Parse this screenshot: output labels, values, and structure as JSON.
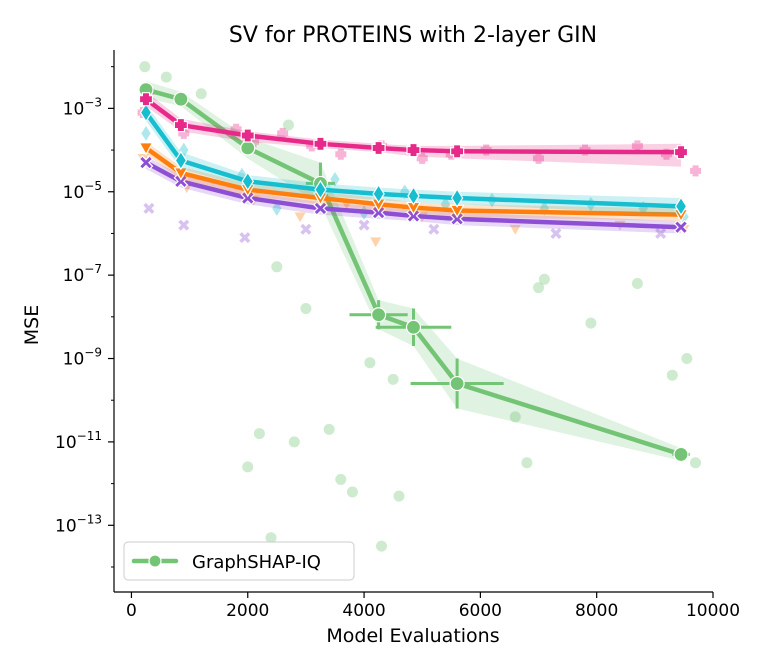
{
  "chart_data": {
    "type": "line",
    "title": "SV for PROTEINS with 2-layer GIN",
    "xlabel": "Model Evaluations",
    "ylabel": "MSE",
    "xlim": [
      -300,
      10000
    ],
    "ylim_log10": [
      -14.6,
      -1.6
    ],
    "x_ticks": [
      0,
      2000,
      4000,
      6000,
      8000,
      10000
    ],
    "x_tick_labels": [
      "0",
      "2000",
      "4000",
      "6000",
      "8000",
      "10000"
    ],
    "y_ticks_log10": [
      -3,
      -5,
      -7,
      -9,
      -11,
      -13
    ],
    "y_tick_labels": [
      {
        "base": "10",
        "exp": "−3"
      },
      {
        "base": "10",
        "exp": "−5"
      },
      {
        "base": "10",
        "exp": "−7"
      },
      {
        "base": "10",
        "exp": "−9"
      },
      {
        "base": "10",
        "exp": "−11"
      },
      {
        "base": "10",
        "exp": "−13"
      }
    ],
    "legend": {
      "label": "GraphSHAP-IQ",
      "location": "lower-left"
    },
    "series": [
      {
        "name": "pink-plus",
        "color": "#e7298a",
        "marker": "plus",
        "x": [
          250,
          850,
          2000,
          3250,
          4250,
          4850,
          5600,
          9450
        ],
        "log10_mse": [
          -2.78,
          -3.4,
          -3.65,
          -3.85,
          -3.95,
          -4.0,
          -4.03,
          -4.05
        ],
        "band_lower": [
          -2.95,
          -3.55,
          -3.8,
          -3.95,
          -4.05,
          -4.15,
          -4.2,
          -4.4
        ],
        "band_upper": [
          -2.6,
          -3.25,
          -3.55,
          -3.75,
          -3.85,
          -3.9,
          -3.9,
          -3.85
        ],
        "scatter_log10": [
          [
            200,
            -3.1
          ],
          [
            300,
            -2.6
          ],
          [
            900,
            -3.6
          ],
          [
            1800,
            -3.5
          ],
          [
            2100,
            -3.8
          ],
          [
            2600,
            -3.6
          ],
          [
            3100,
            -3.9
          ],
          [
            3600,
            -4.1
          ],
          [
            4300,
            -3.9
          ],
          [
            5000,
            -4.2
          ],
          [
            5500,
            -4.1
          ],
          [
            6100,
            -4.0
          ],
          [
            7000,
            -4.2
          ],
          [
            7800,
            -4.0
          ],
          [
            8700,
            -3.9
          ],
          [
            9200,
            -4.1
          ],
          [
            9700,
            -4.5
          ]
        ]
      },
      {
        "name": "cyan-diamond",
        "color": "#17becf",
        "marker": "diamond",
        "x": [
          250,
          850,
          2000,
          3250,
          4250,
          4850,
          5600,
          9450
        ],
        "log10_mse": [
          -3.1,
          -4.25,
          -4.75,
          -4.95,
          -5.05,
          -5.1,
          -5.15,
          -5.35
        ],
        "band_lower": [
          -3.3,
          -4.45,
          -4.9,
          -5.1,
          -5.2,
          -5.25,
          -5.3,
          -5.55
        ],
        "band_upper": [
          -2.9,
          -4.05,
          -4.6,
          -4.8,
          -4.9,
          -4.95,
          -5.0,
          -5.15
        ],
        "scatter_log10": [
          [
            250,
            -3.6
          ],
          [
            900,
            -4.0
          ],
          [
            1900,
            -4.6
          ],
          [
            2500,
            -5.4
          ],
          [
            3500,
            -4.7
          ],
          [
            4000,
            -5.5
          ],
          [
            4700,
            -5.0
          ],
          [
            5400,
            -5.3
          ],
          [
            6200,
            -5.2
          ],
          [
            7100,
            -5.4
          ],
          [
            7900,
            -5.3
          ],
          [
            8800,
            -5.4
          ],
          [
            9500,
            -5.6
          ]
        ]
      },
      {
        "name": "orange-triangle",
        "color": "#ff7f0e",
        "marker": "triangle-down",
        "x": [
          250,
          850,
          2000,
          3250,
          4250,
          4850,
          5600,
          9450
        ],
        "log10_mse": [
          -3.95,
          -4.55,
          -4.95,
          -5.15,
          -5.3,
          -5.38,
          -5.45,
          -5.55
        ],
        "band_lower": [
          -4.1,
          -4.7,
          -5.1,
          -5.3,
          -5.45,
          -5.5,
          -5.6,
          -5.7
        ],
        "band_upper": [
          -3.8,
          -4.4,
          -4.8,
          -5.0,
          -5.15,
          -5.25,
          -5.3,
          -5.4
        ],
        "scatter_log10": [
          [
            200,
            -4.2
          ],
          [
            950,
            -4.9
          ],
          [
            2100,
            -5.2
          ],
          [
            2900,
            -5.6
          ],
          [
            3700,
            -5.3
          ],
          [
            4200,
            -6.2
          ],
          [
            5000,
            -5.6
          ],
          [
            6600,
            -5.9
          ],
          [
            8400,
            -5.8
          ],
          [
            9500,
            -5.9
          ]
        ]
      },
      {
        "name": "purple-x",
        "color": "#8e4fd4",
        "marker": "x",
        "x": [
          250,
          850,
          2000,
          3250,
          4250,
          4850,
          5600,
          9450
        ],
        "log10_mse": [
          -4.3,
          -4.75,
          -5.15,
          -5.4,
          -5.5,
          -5.58,
          -5.65,
          -5.85
        ],
        "band_lower": [
          -4.45,
          -4.9,
          -5.3,
          -5.55,
          -5.65,
          -5.7,
          -5.8,
          -6.0
        ],
        "band_upper": [
          -4.15,
          -4.6,
          -5.0,
          -5.25,
          -5.35,
          -5.45,
          -5.5,
          -5.7
        ],
        "scatter_log10": [
          [
            300,
            -5.4
          ],
          [
            900,
            -5.8
          ],
          [
            1950,
            -6.1
          ],
          [
            3000,
            -5.9
          ],
          [
            4000,
            -5.8
          ],
          [
            5200,
            -5.9
          ],
          [
            7300,
            -6.0
          ],
          [
            9100,
            -6.0
          ]
        ]
      },
      {
        "name": "GraphSHAP-IQ",
        "color": "#74c476",
        "marker": "circle",
        "x": [
          250,
          850,
          2000,
          3250,
          4250,
          4850,
          5600,
          9450
        ],
        "log10_mse": [
          -2.55,
          -2.78,
          -3.95,
          -4.8,
          -7.95,
          -8.25,
          -9.6,
          -11.3
        ],
        "band_lower": [
          -2.75,
          -2.95,
          -4.2,
          -5.3,
          -8.3,
          -8.7,
          -10.2,
          -11.45
        ],
        "band_upper": [
          -2.35,
          -2.6,
          -3.7,
          -4.3,
          -7.6,
          -7.8,
          -9.0,
          -11.15
        ],
        "x_error": [
          0,
          0,
          0,
          250,
          500,
          650,
          800,
          150
        ],
        "scatter_log10": [
          [
            230,
            -2.0
          ],
          [
            600,
            -2.25
          ],
          [
            1200,
            -2.65
          ],
          [
            2700,
            -3.4
          ],
          [
            2200,
            -10.8
          ],
          [
            2500,
            -6.8
          ],
          [
            2800,
            -11.0
          ],
          [
            3000,
            -7.8
          ],
          [
            3400,
            -10.7
          ],
          [
            3600,
            -11.9
          ],
          [
            4100,
            -9.1
          ],
          [
            4300,
            -13.5
          ],
          [
            4500,
            -9.5
          ],
          [
            2400,
            -13.3
          ],
          [
            2000,
            -11.6
          ],
          [
            3800,
            -12.2
          ],
          [
            4600,
            -12.3
          ],
          [
            6600,
            -10.4
          ],
          [
            6800,
            -11.5
          ],
          [
            7000,
            -7.3
          ],
          [
            7100,
            -7.1
          ],
          [
            7900,
            -8.15
          ],
          [
            8700,
            -7.2
          ],
          [
            9300,
            -9.4
          ],
          [
            9550,
            -9.0
          ],
          [
            9700,
            -11.5
          ]
        ]
      }
    ]
  }
}
